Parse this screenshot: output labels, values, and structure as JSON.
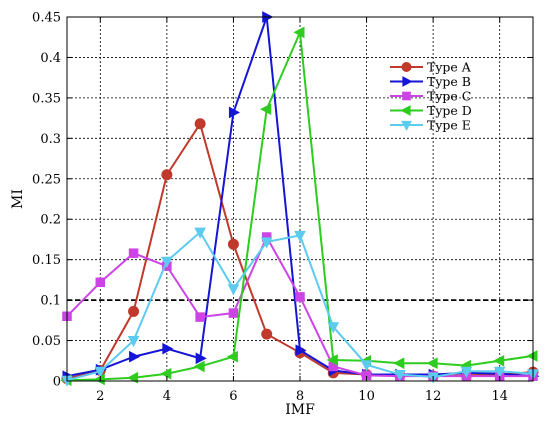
{
  "chart_data": {
    "type": "line",
    "xlabel": "IMF",
    "ylabel": "MI",
    "xlim": [
      1,
      15
    ],
    "ylim": [
      0,
      0.45
    ],
    "xticks": [
      2,
      4,
      6,
      8,
      10,
      12,
      14
    ],
    "yticks": [
      0,
      0.05,
      0.1,
      0.15,
      0.2,
      0.25,
      0.3,
      0.35,
      0.4,
      0.45
    ],
    "ytick_labels": [
      "0",
      "0.05",
      "0.1",
      "0.15",
      "0.2",
      "0.25",
      "0.3",
      "0.35",
      "0.4",
      "0.45"
    ],
    "grid": true,
    "legend_position": "top-right",
    "threshold": {
      "y": 0.1,
      "style": "dashed",
      "color": "#000000"
    },
    "x": [
      1,
      2,
      3,
      4,
      5,
      6,
      7,
      8,
      9,
      10,
      11,
      12,
      13,
      14,
      15
    ],
    "series": [
      {
        "name": "Type A",
        "color": "#c0392b",
        "marker": "circle",
        "values": [
          0.003,
          0.013,
          0.086,
          0.255,
          0.318,
          0.169,
          0.058,
          0.035,
          0.01,
          0.008,
          0.007,
          0.006,
          0.007,
          0.008,
          0.011
        ]
      },
      {
        "name": "Type B",
        "color": "#1515d6",
        "marker": "triangle-right",
        "values": [
          0.006,
          0.014,
          0.03,
          0.04,
          0.028,
          0.332,
          0.45,
          0.038,
          0.013,
          0.008,
          0.008,
          0.008,
          0.01,
          0.009,
          0.006
        ]
      },
      {
        "name": "Type C",
        "color": "#cc44e6",
        "marker": "square",
        "values": [
          0.08,
          0.122,
          0.158,
          0.142,
          0.079,
          0.084,
          0.178,
          0.104,
          0.018,
          0.007,
          0.006,
          0.006,
          0.006,
          0.006,
          0.006
        ]
      },
      {
        "name": "Type D",
        "color": "#2ecc1f",
        "marker": "triangle-left",
        "values": [
          0.001,
          0.002,
          0.004,
          0.009,
          0.018,
          0.03,
          0.336,
          0.431,
          0.026,
          0.025,
          0.022,
          0.022,
          0.019,
          0.025,
          0.031
        ]
      },
      {
        "name": "Type E",
        "color": "#5ccbf0",
        "marker": "triangle-down",
        "values": [
          0.001,
          0.012,
          0.05,
          0.148,
          0.184,
          0.114,
          0.172,
          0.18,
          0.067,
          0.02,
          0.008,
          0.005,
          0.012,
          0.012,
          0.009
        ]
      }
    ]
  }
}
